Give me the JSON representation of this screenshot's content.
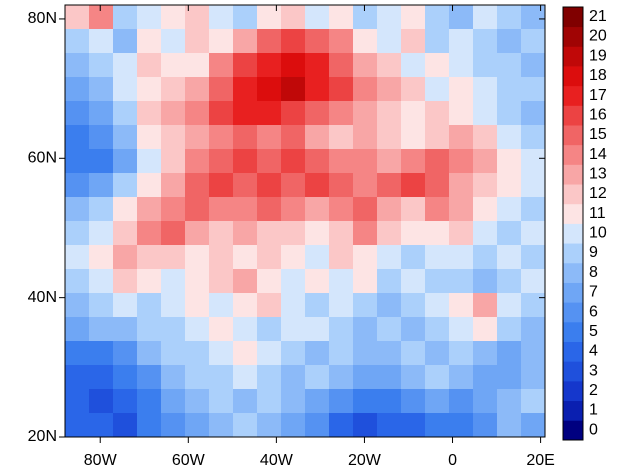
{
  "chart_data": {
    "type": "heatmap",
    "xlim": [
      -88,
      21
    ],
    "ylim": [
      20,
      82
    ],
    "xticks": [
      {
        "value": -80,
        "label": "80W"
      },
      {
        "value": -60,
        "label": "60W"
      },
      {
        "value": -40,
        "label": "40W"
      },
      {
        "value": -20,
        "label": "20W"
      },
      0,
      {
        "value": 20,
        "label": "20E"
      }
    ],
    "yticks": [
      {
        "value": 20,
        "label": "20N"
      },
      {
        "value": 40,
        "label": "40N"
      },
      {
        "value": 60,
        "label": "60N"
      },
      {
        "value": 80,
        "label": "80N"
      }
    ],
    "colorbar": {
      "ticks": [
        0,
        1,
        2,
        3,
        4,
        5,
        6,
        7,
        8,
        9,
        10,
        11,
        12,
        13,
        14,
        15,
        16,
        17,
        18,
        19,
        20,
        21
      ],
      "colors": [
        "#000080",
        "#0a1fb0",
        "#1537cc",
        "#1f50dc",
        "#2a66e8",
        "#3b7eee",
        "#5592f2",
        "#6fa6f5",
        "#8cbaf8",
        "#abd0fb",
        "#d4e6fc",
        "#fde4e4",
        "#fbc7c7",
        "#f8a6a6",
        "#f58585",
        "#f06565",
        "#ec4343",
        "#e82020",
        "#dc0d0d",
        "#c00808",
        "#a00404",
        "#800000"
      ]
    },
    "values": [
      [
        12,
        14,
        9,
        10,
        11,
        12,
        10,
        9,
        11,
        12,
        10,
        11,
        9,
        10,
        11,
        9,
        8,
        10,
        9,
        8
      ],
      [
        9,
        10,
        8,
        11,
        10,
        12,
        11,
        13,
        15,
        16,
        15,
        14,
        11,
        10,
        12,
        9,
        10,
        9,
        8,
        9
      ],
      [
        8,
        9,
        10,
        12,
        11,
        11,
        14,
        16,
        17,
        18,
        17,
        15,
        13,
        12,
        10,
        11,
        10,
        9,
        9,
        8
      ],
      [
        7,
        8,
        10,
        11,
        12,
        13,
        15,
        17,
        18,
        19,
        17,
        16,
        14,
        13,
        12,
        10,
        11,
        10,
        9,
        9
      ],
      [
        6,
        7,
        9,
        12,
        13,
        14,
        16,
        17,
        17,
        16,
        15,
        14,
        13,
        12,
        11,
        12,
        11,
        10,
        9,
        8
      ],
      [
        5,
        6,
        8,
        11,
        12,
        13,
        14,
        15,
        14,
        15,
        13,
        12,
        13,
        12,
        11,
        12,
        13,
        12,
        10,
        9
      ],
      [
        5,
        5,
        7,
        10,
        12,
        14,
        15,
        16,
        15,
        16,
        15,
        14,
        14,
        13,
        14,
        15,
        14,
        13,
        11,
        10
      ],
      [
        6,
        7,
        9,
        11,
        13,
        15,
        16,
        15,
        16,
        15,
        16,
        15,
        14,
        15,
        16,
        15,
        13,
        12,
        11,
        10
      ],
      [
        8,
        9,
        11,
        13,
        14,
        15,
        14,
        14,
        15,
        14,
        13,
        14,
        15,
        13,
        12,
        14,
        13,
        11,
        10,
        9
      ],
      [
        9,
        10,
        12,
        14,
        15,
        13,
        12,
        13,
        12,
        12,
        11,
        12,
        14,
        12,
        11,
        11,
        12,
        10,
        9,
        10
      ],
      [
        10,
        11,
        13,
        12,
        12,
        11,
        12,
        11,
        12,
        11,
        10,
        12,
        11,
        10,
        9,
        10,
        10,
        9,
        10,
        9
      ],
      [
        9,
        10,
        12,
        11,
        10,
        11,
        12,
        13,
        11,
        10,
        11,
        10,
        11,
        9,
        10,
        9,
        9,
        8,
        9,
        10
      ],
      [
        8,
        9,
        10,
        9,
        10,
        11,
        10,
        11,
        12,
        10,
        9,
        10,
        9,
        8,
        9,
        10,
        11,
        13,
        10,
        9
      ],
      [
        7,
        8,
        8,
        9,
        9,
        10,
        11,
        10,
        9,
        10,
        10,
        9,
        8,
        9,
        8,
        9,
        10,
        11,
        9,
        8
      ],
      [
        5,
        5,
        6,
        8,
        9,
        9,
        10,
        11,
        10,
        9,
        8,
        9,
        8,
        8,
        9,
        8,
        9,
        8,
        7,
        8
      ],
      [
        4,
        4,
        5,
        6,
        8,
        9,
        9,
        10,
        9,
        8,
        9,
        8,
        7,
        7,
        8,
        9,
        8,
        7,
        7,
        8
      ],
      [
        4,
        3,
        4,
        5,
        7,
        8,
        9,
        8,
        9,
        8,
        7,
        6,
        5,
        5,
        6,
        7,
        6,
        7,
        8,
        9
      ],
      [
        4,
        4,
        3,
        5,
        6,
        7,
        8,
        9,
        8,
        7,
        6,
        4,
        3,
        4,
        4,
        5,
        5,
        6,
        8,
        7
      ]
    ]
  }
}
